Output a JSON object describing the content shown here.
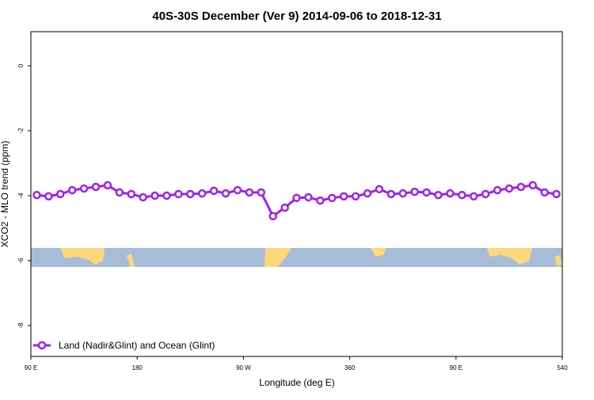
{
  "chart_data": {
    "type": "line",
    "title": "40S-30S December (Ver 9)   2014-09-06 to 2018-12-31",
    "x_label": "Longitude (deg E)",
    "y_label": "XCO2 - MLO trend (ppm)",
    "x": [
      95,
      105,
      115,
      125,
      135,
      145,
      155,
      165,
      175,
      185,
      195,
      205,
      215,
      225,
      235,
      245,
      255,
      265,
      275,
      285,
      295,
      305,
      315,
      325,
      335,
      345,
      355,
      365,
      375,
      385,
      395,
      405,
      415,
      425,
      435,
      445,
      455,
      465,
      475,
      485,
      495,
      505,
      515,
      525,
      535
    ],
    "series": [
      {
        "name": "Land (Nadir&Glint) and Ocean (Glint)",
        "color": "#a020f0",
        "values": [
          -3.98,
          -4.02,
          -3.95,
          -3.83,
          -3.78,
          -3.73,
          -3.68,
          -3.9,
          -3.95,
          -4.05,
          -4.0,
          -4.0,
          -3.95,
          -3.95,
          -3.93,
          -3.85,
          -3.93,
          -3.83,
          -3.9,
          -3.9,
          -4.63,
          -4.37,
          -4.07,
          -4.05,
          -4.15,
          -4.07,
          -4.02,
          -4.02,
          -3.93,
          -3.8,
          -3.95,
          -3.93,
          -3.88,
          -3.9,
          -3.98,
          -3.93,
          -3.98,
          -4.02,
          -3.95,
          -3.83,
          -3.78,
          -3.73,
          -3.68,
          -3.9,
          -3.95
        ]
      }
    ],
    "xlim": [
      90,
      540
    ],
    "xticks": [
      {
        "value": 90,
        "label": "90 E"
      },
      180,
      {
        "value": 270,
        "label": "90 W"
      },
      360,
      {
        "value": 450,
        "label": "90 E"
      },
      540
    ],
    "ylim": [
      -8.95,
      1.05
    ],
    "yticks": [
      0,
      -2,
      -4,
      -6,
      -8
    ],
    "legend_position": "bottom-left"
  }
}
